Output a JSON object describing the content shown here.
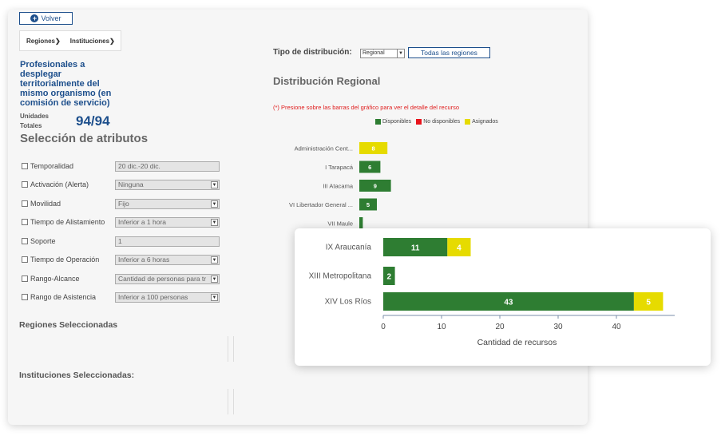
{
  "header": {
    "volver_label": "Volver"
  },
  "filters": {
    "regiones": "Regiones",
    "instituciones": "Instituciones"
  },
  "summary": {
    "title": "Profesionales a desplegar territorialmente del mismo organismo (en comisión de servicio)",
    "unidades_label": "Unidades Totales",
    "unidades_value": "94/94"
  },
  "attributes": {
    "title": "Selección de atributos",
    "rows": [
      {
        "label": "Temporalidad",
        "value": "20 dic.-20 dic.",
        "type": "text"
      },
      {
        "label": "Activación (Alerta)",
        "value": "Ninguna",
        "type": "select"
      },
      {
        "label": "Movilidad",
        "value": "Fijo",
        "type": "select"
      },
      {
        "label": "Tiempo de Alistamiento",
        "value": "Inferior a 1 hora",
        "type": "select"
      },
      {
        "label": "Soporte",
        "value": "1",
        "type": "text"
      },
      {
        "label": "Tiempo de Operación",
        "value": "Inferior a 6 horas",
        "type": "select"
      },
      {
        "label": "Rango-Alcance",
        "value": "Cantidad de personas para tr",
        "type": "select"
      },
      {
        "label": "Rango de Asistencia",
        "value": "Inferior a 100 personas",
        "type": "select"
      }
    ]
  },
  "selected": {
    "regiones": "Regiones Seleccionadas",
    "instituciones": "Instituciones Seleccionadas:"
  },
  "distribution": {
    "tipo_label": "Tipo de distribución:",
    "tipo_value": "Regional",
    "todas_label": "Todas las regiones",
    "title": "Distribución Regional",
    "note": "(*) Presione sobre las barras del gráfico para ver el detalle del recurso",
    "legend": [
      {
        "name": "Disponibles",
        "color": "#2e7d32"
      },
      {
        "name": "No disponibles",
        "color": "#e8141c"
      },
      {
        "name": "Asignados",
        "color": "#e6db00"
      }
    ]
  },
  "chart_data": [
    {
      "type": "bar",
      "orientation": "horizontal",
      "categories": [
        "Administración Cent...",
        "I Tarapacá",
        "III Atacama",
        "VI Libertador General ...",
        "VII Maule"
      ],
      "series": [
        {
          "name": "Disponibles",
          "color": "#2e7d32",
          "values": [
            0,
            6,
            9,
            5,
            1
          ]
        },
        {
          "name": "No disponibles",
          "color": "#e8141c",
          "values": [
            0,
            0,
            0,
            0,
            0
          ]
        },
        {
          "name": "Asignados",
          "color": "#e6db00",
          "values": [
            8,
            0,
            0,
            0,
            0
          ]
        }
      ],
      "data_labels": [
        "8",
        "6",
        "9",
        "5",
        ""
      ]
    },
    {
      "type": "bar",
      "orientation": "horizontal",
      "stacked": true,
      "categories": [
        "IX Araucanía",
        "XIII Metropolitana",
        "XIV Los Ríos"
      ],
      "series": [
        {
          "name": "Disponibles",
          "color": "#2e7d32",
          "values": [
            11,
            2,
            43
          ]
        },
        {
          "name": "Asignados",
          "color": "#e6db00",
          "values": [
            4,
            0,
            5
          ]
        }
      ],
      "xticks": [
        "0",
        "10",
        "20",
        "30",
        "40"
      ],
      "xlim": [
        0,
        50
      ],
      "xlabel": "Cantidad de recursos"
    }
  ]
}
